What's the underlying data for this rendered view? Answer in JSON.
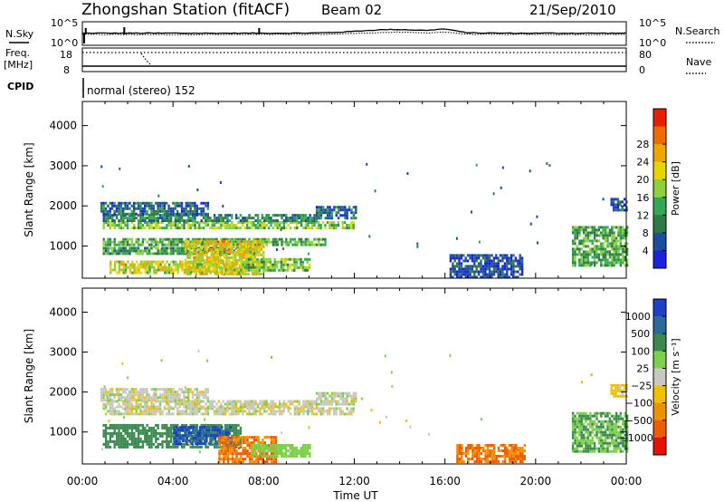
{
  "header": {
    "title": "Zhongshan Station (fitACF)",
    "beam": "Beam 02",
    "date": "21/Sep/2010"
  },
  "noise_panel": {
    "left_label": "N.Sky",
    "right_label": "N.Search",
    "ticks": [
      "10^5",
      "10^0"
    ]
  },
  "freq_panel": {
    "left_label_1": "Freq.",
    "left_label_2": "[MHz]",
    "left_ticks": [
      "18",
      "8"
    ],
    "right_label": "Nave",
    "right_ticks": [
      "80",
      "0"
    ]
  },
  "cpid_panel": {
    "label": "CPID",
    "text": "normal (stereo) 152"
  },
  "colors": {
    "power": [
      "#1a22e0",
      "#1c4da0",
      "#2f7a45",
      "#34a852",
      "#8fd13b",
      "#e8d400",
      "#f0a400",
      "#f06a00",
      "#e82000"
    ],
    "velocity": [
      "#1c3fc8",
      "#2a6a9a",
      "#3a8a50",
      "#7ed04a",
      "#c8c8c0",
      "#f0c000",
      "#f09000",
      "#f05a00",
      "#e81000"
    ]
  },
  "chart_data": [
    {
      "type": "heatmap",
      "title": "",
      "xlabel": "Time UT",
      "ylabel": "Slant Range [km]",
      "x_ticks": [
        "00:00",
        "04:00",
        "08:00",
        "12:00",
        "16:00",
        "20:00",
        "00:00"
      ],
      "y_ticks": [
        "1000",
        "2000",
        "3000",
        "4000"
      ],
      "colorbar": {
        "label": "Power [dB]",
        "ticks": [
          "4",
          "8",
          "12",
          "16",
          "20",
          "24",
          "28"
        ]
      },
      "regions": [
        {
          "t": [
            0.9,
            12.0
          ],
          "r": [
            1480,
            1620
          ],
          "v": 15
        },
        {
          "t": [
            0.9,
            10.3
          ],
          "r": [
            1650,
            1800
          ],
          "v": 9
        },
        {
          "t": [
            10.3,
            12.1
          ],
          "r": [
            1700,
            2000
          ],
          "v": 7
        },
        {
          "t": [
            0.8,
            5.5
          ],
          "r": [
            1800,
            2100
          ],
          "v": 7
        },
        {
          "t": [
            0.9,
            10.7
          ],
          "r": [
            1050,
            1200
          ],
          "v": 12
        },
        {
          "t": [
            0.9,
            7.5
          ],
          "r": [
            800,
            980
          ],
          "v": 11
        },
        {
          "t": [
            4.5,
            8.0
          ],
          "r": [
            280,
            1150
          ],
          "v": 20
        },
        {
          "t": [
            1.2,
            7.2
          ],
          "r": [
            350,
            640
          ],
          "v": 18
        },
        {
          "t": [
            7.2,
            10.0
          ],
          "r": [
            400,
            700
          ],
          "v": 14
        },
        {
          "t": [
            16.2,
            19.4
          ],
          "r": [
            250,
            800
          ],
          "v": 5
        },
        {
          "t": [
            21.6,
            24.0
          ],
          "r": [
            500,
            1500
          ],
          "v": 12
        },
        {
          "t": [
            23.3,
            24.0
          ],
          "r": [
            1900,
            2200
          ],
          "v": 6
        }
      ]
    },
    {
      "type": "heatmap",
      "title": "",
      "xlabel": "Time UT",
      "ylabel": "Slant Range [km]",
      "x_ticks": [
        "00:00",
        "04:00",
        "08:00",
        "12:00",
        "16:00",
        "20:00",
        "00:00"
      ],
      "y_ticks": [
        "1000",
        "2000",
        "3000",
        "4000"
      ],
      "colorbar": {
        "label": "Velocity [m s⁻¹]",
        "ticks": [
          "1000",
          "500",
          "100",
          "25",
          "−25",
          "−100",
          "−500",
          "−1000"
        ]
      },
      "regions": [
        {
          "t": [
            0.9,
            12.0
          ],
          "r": [
            1480,
            1620
          ],
          "v": 0
        },
        {
          "t": [
            0.9,
            10.3
          ],
          "r": [
            1650,
            1800
          ],
          "v": 0
        },
        {
          "t": [
            10.3,
            12.1
          ],
          "r": [
            1700,
            2000
          ],
          "v": 5
        },
        {
          "t": [
            0.8,
            5.5
          ],
          "r": [
            1800,
            2100
          ],
          "v": 0
        },
        {
          "t": [
            0.9,
            7.0
          ],
          "r": [
            600,
            1200
          ],
          "v": 200
        },
        {
          "t": [
            4.0,
            6.5
          ],
          "r": [
            700,
            1150
          ],
          "v": 700
        },
        {
          "t": [
            6.0,
            8.5
          ],
          "r": [
            280,
            900
          ],
          "v": -300
        },
        {
          "t": [
            7.5,
            10.0
          ],
          "r": [
            400,
            700
          ],
          "v": 60
        },
        {
          "t": [
            16.5,
            19.5
          ],
          "r": [
            250,
            700
          ],
          "v": -300
        },
        {
          "t": [
            21.6,
            24.0
          ],
          "r": [
            500,
            1500
          ],
          "v": 100
        },
        {
          "t": [
            23.3,
            24.0
          ],
          "r": [
            1900,
            2200
          ],
          "v": -50
        }
      ]
    }
  ]
}
